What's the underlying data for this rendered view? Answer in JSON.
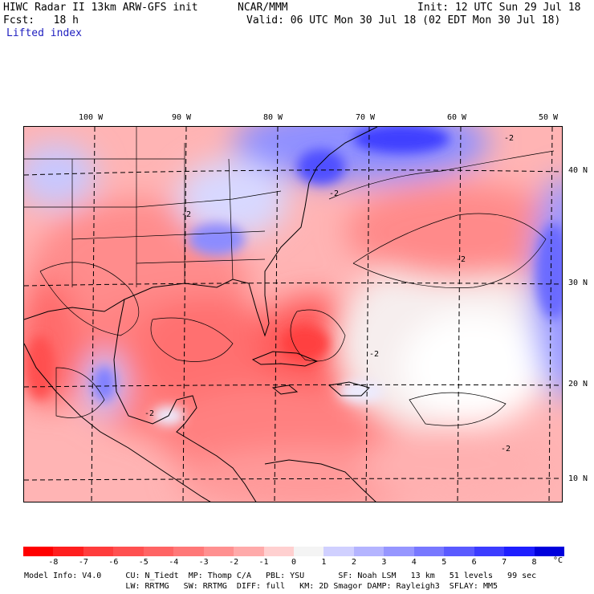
{
  "header": {
    "line1_left": "HIWC Radar II 13km ARW-GFS init",
    "line1_mid": "NCAR/MMM",
    "line1_right": "Init: 12 UTC Sun 29 Jul 18",
    "line2_left": "Fcst:   18 h",
    "line2_right": "Valid: 06 UTC Mon 30 Jul 18 (02 EDT Mon 30 Jul 18)",
    "field_name": "Lifted index"
  },
  "map": {
    "longitude_labels": [
      "100 W",
      "90 W",
      "80 W",
      "70 W",
      "60 W",
      "50 W"
    ],
    "latitude_labels": [
      "40 N",
      "30 N",
      "20 N",
      "10 N"
    ],
    "contour_labels": [
      "-2",
      "-2",
      "-2",
      "-2",
      "-2",
      "-2",
      "-2"
    ],
    "colors": {
      "grid": "#000000",
      "coast": "#000000"
    }
  },
  "colorbar": {
    "labels": [
      "-8",
      "-7",
      "-6",
      "-5",
      "-4",
      "-3",
      "-2",
      "-1",
      "0",
      "1",
      "2",
      "3",
      "4",
      "5",
      "6",
      "7",
      "8"
    ],
    "unit": "°C",
    "colors": [
      "#ff0000",
      "#ff1e1e",
      "#ff3c3c",
      "#ff5050",
      "#ff6464",
      "#ff7878",
      "#ff9090",
      "#ffaaaa",
      "#ffd0d0",
      "#f4f4f4",
      "#d0d0ff",
      "#b4b4ff",
      "#9696ff",
      "#7878ff",
      "#5a5aff",
      "#3c3cff",
      "#1e1eff",
      "#0000dc"
    ]
  },
  "footer": {
    "line1": "Model Info: V4.0     CU: N_Tiedt  MP: Thomp C/A   PBL: YSU       SF: Noah LSM   13 km   51 levels   99 sec",
    "line2": "                     LW: RRTMG   SW: RRTMG  DIFF: full   KM: 2D Smagor DAMP: Rayleigh3  SFLAY: MM5"
  }
}
